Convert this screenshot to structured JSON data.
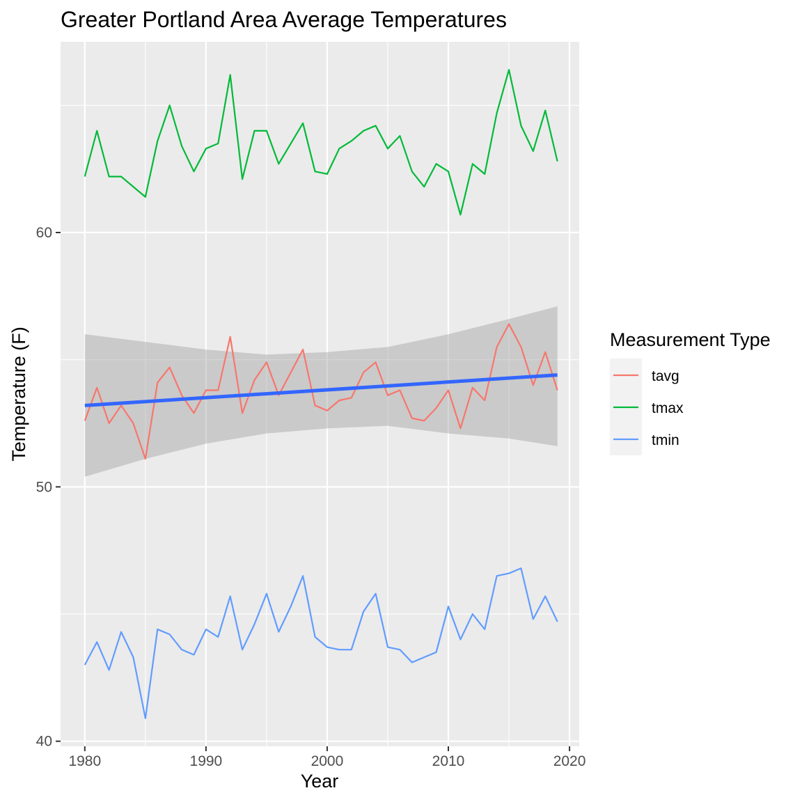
{
  "chart_data": {
    "type": "line",
    "title": "Greater Portland Area Average Temperatures",
    "xlabel": "Year",
    "ylabel": "Temperature (F)",
    "xlim": [
      1978,
      2020.8
    ],
    "ylim": [
      39.8,
      67.5
    ],
    "x_ticks": [
      1980,
      1990,
      2000,
      2010,
      2020
    ],
    "y_ticks": [
      40,
      50,
      60
    ],
    "grid": true,
    "legend": {
      "title": "Measurement Type",
      "position": "right"
    },
    "x": [
      1980,
      1981,
      1982,
      1983,
      1984,
      1985,
      1986,
      1987,
      1988,
      1989,
      1990,
      1991,
      1992,
      1993,
      1994,
      1995,
      1996,
      1997,
      1998,
      1999,
      2000,
      2001,
      2002,
      2003,
      2004,
      2005,
      2006,
      2007,
      2008,
      2009,
      2010,
      2011,
      2012,
      2013,
      2014,
      2015,
      2016,
      2017,
      2018,
      2019
    ],
    "series": [
      {
        "name": "tavg",
        "color": "#F8766D",
        "values": [
          52.6,
          53.9,
          52.5,
          53.2,
          52.5,
          51.1,
          54.1,
          54.7,
          53.6,
          52.9,
          53.8,
          53.8,
          55.9,
          52.9,
          54.2,
          54.9,
          53.6,
          54.5,
          55.4,
          53.2,
          53.0,
          53.4,
          53.5,
          54.5,
          54.9,
          53.6,
          53.8,
          52.7,
          52.6,
          53.1,
          53.8,
          52.3,
          53.9,
          53.4,
          55.5,
          56.4,
          55.5,
          54.0,
          55.3,
          53.8
        ]
      },
      {
        "name": "tmax",
        "color": "#00BA38",
        "values": [
          62.2,
          64.0,
          62.2,
          62.2,
          61.8,
          61.4,
          63.6,
          65.0,
          63.4,
          62.4,
          63.3,
          63.5,
          66.2,
          62.1,
          64.0,
          64.0,
          62.7,
          63.5,
          64.3,
          62.4,
          62.3,
          63.3,
          63.6,
          64.0,
          64.2,
          63.3,
          63.8,
          62.4,
          61.8,
          62.7,
          62.4,
          60.7,
          62.7,
          62.3,
          64.7,
          66.4,
          64.2,
          63.2,
          64.8,
          62.8
        ]
      },
      {
        "name": "tmin",
        "color": "#619CFF",
        "values": [
          43.0,
          43.9,
          42.8,
          44.3,
          43.3,
          40.9,
          44.4,
          44.2,
          43.6,
          43.4,
          44.4,
          44.1,
          45.7,
          43.6,
          44.6,
          45.8,
          44.3,
          45.3,
          46.5,
          44.1,
          43.7,
          43.6,
          43.6,
          45.1,
          45.8,
          43.7,
          43.6,
          43.1,
          43.3,
          43.5,
          45.3,
          44.0,
          45.0,
          44.4,
          46.5,
          46.6,
          46.8,
          44.8,
          45.7,
          44.7
        ]
      }
    ],
    "trend": {
      "color": "#3366FF",
      "fit": [
        53.2,
        54.4
      ],
      "band_color": "#999999",
      "band_x": [
        1980,
        1985,
        1990,
        1995,
        2000,
        2005,
        2010,
        2015,
        2019
      ],
      "band_lower": [
        50.4,
        51.1,
        51.7,
        52.1,
        52.3,
        52.4,
        52.1,
        51.9,
        51.6
      ],
      "band_upper": [
        56.0,
        55.7,
        55.4,
        55.2,
        55.3,
        55.5,
        56.0,
        56.6,
        57.1
      ]
    }
  }
}
